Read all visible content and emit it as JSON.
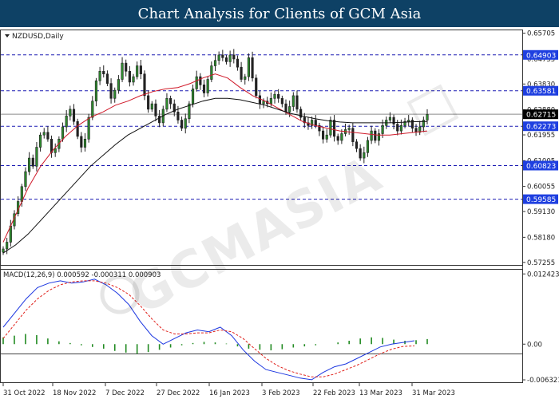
{
  "title_bar": "Chart Analysis for Clients of GCM Asia",
  "colors": {
    "title_bg": "#0e4165",
    "price_badge": "#1e3fe0",
    "current_badge": "#000000",
    "bull_candle": "#2e8b2e",
    "bear_candle": "#222222",
    "ma_fast": "#d01a2a",
    "ma_slow": "#111111",
    "macd_line": "#1b36e0",
    "signal_line": "#e0201a",
    "histogram": "#228b22",
    "level_line": "#1b1bb3"
  },
  "watermark": "GCMASIA",
  "chart_data": [
    {
      "type": "candlestick",
      "symbol_label": "NZDUSD,Daily",
      "ylim": [
        0.5722,
        0.6575
      ],
      "y_ticks": [
        "0.65705",
        "0.64755",
        "0.63830",
        "0.62880",
        "0.61955",
        "0.61005",
        "0.60055",
        "0.59130",
        "0.58180",
        "0.57255"
      ],
      "x_ticks": [
        "31 Oct 2022",
        "18 Nov 2022",
        "7 Dec 2022",
        "27 Dec 2022",
        "16 Jan 2023",
        "3 Feb 2023",
        "22 Feb 2023",
        "13 Mar 2023",
        "31 Mar 2023"
      ],
      "horizontal_levels": [
        {
          "label": "0.64903",
          "value": 0.64903
        },
        {
          "label": "0.63581",
          "value": 0.63581
        },
        {
          "label": "0.62273",
          "value": 0.62273
        },
        {
          "label": "0.60823",
          "value": 0.60823
        },
        {
          "label": "0.59585",
          "value": 0.59585
        }
      ],
      "current_price": {
        "label": "0.62715",
        "value": 0.62715
      },
      "close_series": [
        0.5775,
        0.58,
        0.586,
        0.5905,
        0.595,
        0.6005,
        0.606,
        0.611,
        0.608,
        0.615,
        0.6195,
        0.6205,
        0.618,
        0.613,
        0.6145,
        0.618,
        0.6225,
        0.6265,
        0.629,
        0.6245,
        0.619,
        0.615,
        0.618,
        0.626,
        0.632,
        0.6395,
        0.643,
        0.642,
        0.6385,
        0.633,
        0.636,
        0.64,
        0.646,
        0.643,
        0.639,
        0.641,
        0.645,
        0.642,
        0.634,
        0.629,
        0.631,
        0.6265,
        0.624,
        0.629,
        0.633,
        0.631,
        0.628,
        0.625,
        0.622,
        0.6255,
        0.631,
        0.6365,
        0.641,
        0.638,
        0.635,
        0.64,
        0.645,
        0.647,
        0.649,
        0.648,
        0.6465,
        0.649,
        0.6475,
        0.6445,
        0.64,
        0.641,
        0.648,
        0.6405,
        0.634,
        0.631,
        0.632,
        0.631,
        0.633,
        0.6345,
        0.633,
        0.631,
        0.628,
        0.63,
        0.634,
        0.629,
        0.626,
        0.624,
        0.623,
        0.625,
        0.623,
        0.621,
        0.618,
        0.6195,
        0.625,
        0.619,
        0.6175,
        0.62,
        0.6215,
        0.622,
        0.617,
        0.6145,
        0.611,
        0.613,
        0.6175,
        0.621,
        0.6175,
        0.62,
        0.623,
        0.625,
        0.626,
        0.6235,
        0.621,
        0.623,
        0.6245,
        0.625,
        0.622,
        0.6205,
        0.6225,
        0.625,
        0.6271
      ],
      "moving_averages": [
        {
          "values": [
            0.58,
            0.59,
            0.6,
            0.608,
            0.614,
            0.619,
            0.623,
            0.626,
            0.628,
            0.6305,
            0.632,
            0.634,
            0.6355,
            0.6365,
            0.637,
            0.6385,
            0.6405,
            0.642,
            0.6405,
            0.637,
            0.634,
            0.632,
            0.6295,
            0.627,
            0.6245,
            0.623,
            0.622,
            0.621,
            0.6205,
            0.62,
            0.6195,
            0.6195,
            0.62,
            0.6205,
            0.621
          ]
        },
        {
          "values": [
            0.576,
            0.579,
            0.583,
            0.588,
            0.593,
            0.598,
            0.603,
            0.608,
            0.612,
            0.616,
            0.6195,
            0.622,
            0.6245,
            0.627,
            0.629,
            0.6305,
            0.632,
            0.633,
            0.633,
            0.6325,
            0.6315,
            0.6305,
            0.629,
            0.6275,
            0.6265,
            0.6255,
            0.6248,
            0.6243,
            0.624,
            0.624,
            0.624,
            0.624,
            0.6242,
            0.6244,
            0.6245
          ]
        }
      ]
    },
    {
      "type": "macd",
      "label": "MACD(12,26,9) 0.000592 -0.000311 0.000903",
      "ylim": [
        -0.0066,
        0.0126
      ],
      "y_ticks": [
        "0.012423",
        "0.00",
        "-0.006321"
      ],
      "macd_line": [
        0.003,
        0.0055,
        0.008,
        0.01,
        0.0108,
        0.0112,
        0.0108,
        0.011,
        0.0115,
        0.0105,
        0.009,
        0.007,
        0.004,
        0.0015,
        0.0,
        0.001,
        0.002,
        0.0025,
        0.0022,
        0.003,
        0.0015,
        -0.001,
        -0.003,
        -0.0045,
        -0.005,
        -0.0055,
        -0.006,
        -0.0063,
        -0.005,
        -0.004,
        -0.0035,
        -0.0025,
        -0.0015,
        -0.0005,
        0.0,
        0.0003,
        0.0006
      ],
      "signal_line": [
        0.001,
        0.0035,
        0.006,
        0.008,
        0.0095,
        0.0105,
        0.011,
        0.0112,
        0.0112,
        0.0108,
        0.01,
        0.0088,
        0.0068,
        0.0045,
        0.0025,
        0.0018,
        0.0018,
        0.002,
        0.002,
        0.0025,
        0.0022,
        0.001,
        -0.0008,
        -0.0025,
        -0.0038,
        -0.0047,
        -0.0053,
        -0.0058,
        -0.0058,
        -0.0053,
        -0.0045,
        -0.0037,
        -0.0027,
        -0.0017,
        -0.0009,
        -0.0004,
        -0.0003
      ],
      "histogram": [
        0.0012,
        0.0015,
        0.0018,
        0.0016,
        0.001,
        0.0005,
        0.0002,
        -0.0002,
        -0.0005,
        -0.0008,
        -0.0012,
        -0.0015,
        -0.0017,
        -0.0014,
        -0.001,
        -0.0006,
        -0.0002,
        0.0002,
        0.0004,
        0.0003,
        0.0001,
        -0.0004,
        -0.0008,
        -0.001,
        -0.0011,
        -0.0009,
        -0.0006,
        -0.0004,
        -0.0002,
        0.0,
        0.0003,
        0.0006,
        0.001,
        0.0012,
        0.0011,
        0.0008,
        0.0006,
        0.0007,
        0.0009
      ]
    }
  ]
}
